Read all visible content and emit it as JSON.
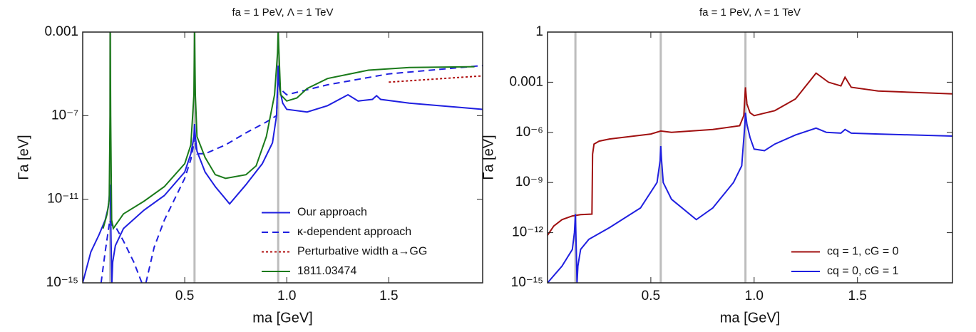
{
  "chart_data": [
    {
      "type": "line",
      "title": "fa = 1 PeV, Λ = 1 TeV",
      "x_label": "ma [GeV]",
      "y_label": "Γa [eV]",
      "log_y": true,
      "legend": "lower right",
      "xlim": [
        0,
        1.96
      ],
      "xticks": [
        0.5,
        {
          "value": 1,
          "label": "1.0"
        },
        1.5
      ],
      "ylim": [
        1e-15,
        0.001
      ],
      "yticks": [
        {
          "value": 1e-15,
          "label": "10⁻¹⁵"
        },
        {
          "value": 1e-11,
          "label": "10⁻¹¹"
        },
        {
          "value": 1e-07,
          "label": "10⁻⁷"
        },
        0.001
      ],
      "vlines": {
        "color": "#bdbdbd",
        "x": [
          0.135,
          0.548,
          0.958
        ]
      },
      "series": [
        {
          "name": "Our approach",
          "color": "#1f1fe0",
          "style": "solid",
          "x": [
            0.0,
            0.04,
            0.08,
            0.11,
            0.125,
            0.132,
            0.135,
            0.139,
            0.143,
            0.147,
            0.16,
            0.2,
            0.3,
            0.4,
            0.5,
            0.53,
            0.545,
            0.548,
            0.552,
            0.56,
            0.6,
            0.65,
            0.72,
            0.8,
            0.88,
            0.93,
            0.95,
            0.958,
            0.965,
            0.98,
            1.0,
            1.1,
            1.2,
            1.3,
            1.35,
            1.42,
            1.44,
            1.46,
            1.6,
            1.96
          ],
          "values": [
            1e-15,
            3e-14,
            2e-13,
            1e-12,
            4e-12,
            2e-11,
            5e-11,
            1e-13,
            1e-15,
            1e-14,
            6e-14,
            4e-13,
            3e-12,
            1.5e-11,
            2e-10,
            1.5e-09,
            1e-08,
            4e-08,
            1e-08,
            2e-09,
            2e-10,
            4e-11,
            6e-12,
            5e-11,
            5e-10,
            5e-09,
            1e-07,
            2.5e-05,
            2e-06,
            4e-07,
            2e-07,
            1.5e-07,
            3e-07,
            1e-06,
            5e-07,
            6e-07,
            9e-07,
            6e-07,
            4e-07,
            2e-07
          ]
        },
        {
          "name": "κ-dependent approach",
          "color": "#1f1fe0",
          "style": "dashed",
          "x": [
            0.09,
            0.11,
            0.125,
            0.133,
            0.14,
            0.16,
            0.2,
            0.25,
            0.29,
            0.31,
            0.35,
            0.4,
            0.5,
            0.53,
            0.545,
            0.548,
            0.552,
            0.56,
            0.6,
            0.7,
            0.8,
            0.9,
            0.95,
            0.958,
            0.965,
            1.0,
            1.2,
            1.5,
            1.96
          ],
          "values": [
            1e-15,
            3e-14,
            3e-13,
            1e-12,
            6e-13,
            5e-13,
            1e-13,
            1e-14,
            1e-15,
            1e-15,
            5e-14,
            1e-12,
            1e-10,
            8e-10,
            5e-09,
            3e-08,
            5e-09,
            1.5e-09,
            1.5e-09,
            4e-09,
            1.5e-08,
            5e-08,
            1e-07,
            1e-05,
            2e-06,
            1e-06,
            3e-06,
            1e-05,
            2.5e-05
          ]
        },
        {
          "name": "Perturbative width a→GG",
          "color": "#b01010",
          "style": "dotted",
          "x": [
            1.5,
            1.96
          ],
          "values": [
            4e-06,
            8e-06
          ]
        },
        {
          "name": "1811.03474",
          "color": "#1a7a1a",
          "style": "solid",
          "x": [
            0.1,
            0.12,
            0.13,
            0.134,
            0.135,
            0.137,
            0.142,
            0.15,
            0.2,
            0.3,
            0.4,
            0.5,
            0.53,
            0.545,
            0.548,
            0.552,
            0.56,
            0.6,
            0.65,
            0.7,
            0.8,
            0.85,
            0.9,
            0.94,
            0.955,
            0.958,
            0.962,
            0.97,
            1.0,
            1.05,
            1.1,
            1.2,
            1.4,
            1.6,
            1.92
          ],
          "values": [
            4e-13,
            2e-12,
            1e-11,
            1e-07,
            0.001,
            1e-07,
            1e-12,
            4e-13,
            2e-12,
            8e-12,
            4e-11,
            5e-10,
            4e-09,
            1e-06,
            0.001,
            1e-06,
            1e-08,
            1e-09,
            1.5e-10,
            1e-10,
            1.5e-10,
            4e-10,
            1e-08,
            1e-06,
            0.0001,
            0.001,
            0.0001,
            1e-06,
            5e-07,
            7e-07,
            2e-06,
            6e-06,
            1.5e-05,
            2e-05,
            2.2e-05
          ]
        }
      ]
    },
    {
      "type": "line",
      "title": "fa = 1 PeV, Λ = 1 TeV",
      "x_label": "ma [GeV]",
      "y_label": "Γa [eV]",
      "log_y": true,
      "legend": "lower right",
      "xlim": [
        0,
        1.96
      ],
      "xticks": [
        0.5,
        {
          "value": 1,
          "label": "1.0"
        },
        1.5
      ],
      "ylim": [
        1e-15,
        1
      ],
      "yticks": [
        {
          "value": 1e-15,
          "label": "10⁻¹⁵"
        },
        {
          "value": 1e-12,
          "label": "10⁻¹²"
        },
        {
          "value": 1e-09,
          "label": "10⁻⁹"
        },
        {
          "value": 1e-06,
          "label": "10⁻⁶"
        },
        0.001,
        1
      ],
      "vlines": {
        "color": "#bdbdbd",
        "x": [
          0.135,
          0.548,
          0.958
        ]
      },
      "series": [
        {
          "name": "cq = 1, cG = 0",
          "color": "#a01010",
          "style": "solid",
          "x": [
            0.0,
            0.03,
            0.07,
            0.12,
            0.16,
            0.215,
            0.218,
            0.225,
            0.25,
            0.3,
            0.5,
            0.548,
            0.6,
            0.8,
            0.93,
            0.95,
            0.958,
            0.965,
            0.98,
            1.0,
            1.1,
            1.2,
            1.3,
            1.36,
            1.42,
            1.44,
            1.47,
            1.6,
            1.96
          ],
          "values": [
            7e-13,
            2.5e-12,
            6e-12,
            1e-11,
            1.2e-11,
            1.3e-11,
            5e-08,
            2e-07,
            3e-07,
            4e-07,
            8e-07,
            1.2e-06,
            1e-06,
            1.5e-06,
            2.5e-06,
            1e-05,
            0.0005,
            5e-05,
            1.5e-05,
            1e-05,
            2e-05,
            0.0001,
            0.0035,
            0.001,
            0.0006,
            0.002,
            0.0005,
            0.0003,
            0.0002
          ]
        },
        {
          "name": "cq = 0, cG = 1",
          "color": "#1f1fe0",
          "style": "solid",
          "x": [
            0.0,
            0.07,
            0.12,
            0.13,
            0.135,
            0.139,
            0.143,
            0.147,
            0.16,
            0.2,
            0.3,
            0.45,
            0.53,
            0.545,
            0.548,
            0.552,
            0.56,
            0.6,
            0.72,
            0.8,
            0.9,
            0.94,
            0.955,
            0.958,
            0.965,
            0.98,
            1.0,
            1.05,
            1.1,
            1.2,
            1.3,
            1.35,
            1.42,
            1.44,
            1.47,
            1.6,
            1.96
          ],
          "values": [
            1e-15,
            1e-14,
            1e-13,
            1e-12,
            1.3e-11,
            1e-13,
            1e-15,
            1e-14,
            1e-13,
            4e-13,
            2e-12,
            3e-11,
            1e-09,
            2e-08,
            1.5e-07,
            2e-08,
            1e-09,
            1e-10,
            6e-12,
            3e-11,
            1e-09,
            1e-08,
            3e-06,
            1.5e-05,
            3e-06,
            5e-07,
            1e-07,
            8e-08,
            2e-07,
            7e-07,
            1.8e-06,
            1e-06,
            9e-07,
            1.5e-06,
            9e-07,
            8e-07,
            6e-07
          ]
        }
      ]
    }
  ]
}
